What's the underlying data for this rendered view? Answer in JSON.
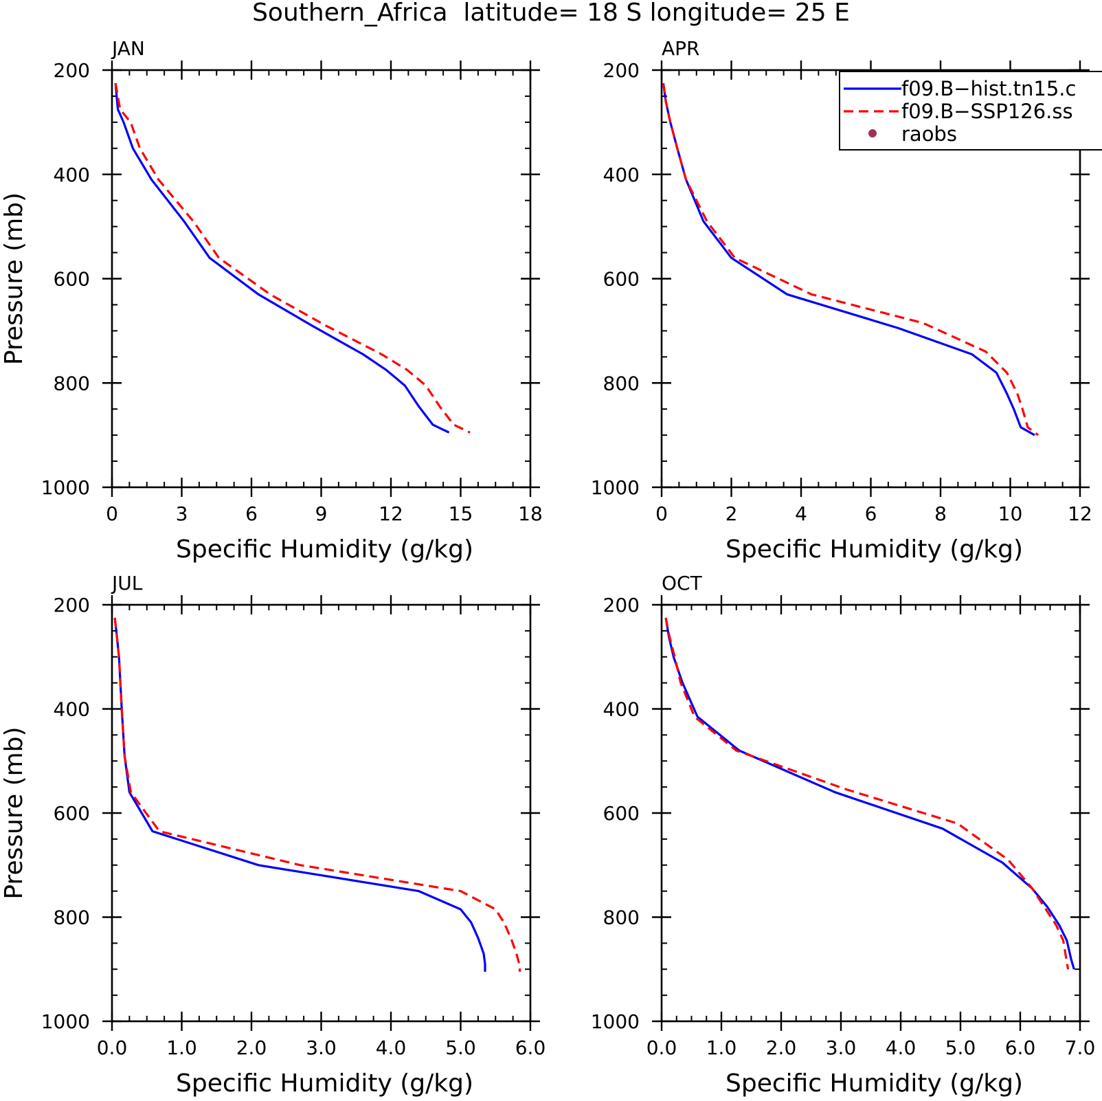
{
  "figure": {
    "title": "Southern_Africa  latitude= 18 S longitude= 25 E"
  },
  "legend": {
    "entries": [
      {
        "label": "f09.B−hist.tn15.c",
        "color": "#0000ff",
        "style": "solid"
      },
      {
        "label": "f09.B−SSP126.ss",
        "color": "#ff0000",
        "style": "dashed"
      },
      {
        "label": "raobs",
        "color": "#a0305a",
        "style": "marker"
      }
    ]
  },
  "chart_data": [
    {
      "type": "line",
      "panel_label": "JAN",
      "xlabel": "Specific Humidity (g/kg)",
      "ylabel": "Pressure (mb)",
      "xlim": [
        0,
        18
      ],
      "ylim": [
        200,
        1000
      ],
      "y_inverted": true,
      "xticks": [
        0,
        3,
        6,
        9,
        12,
        15,
        18
      ],
      "xtick_labels": [
        "0",
        "3",
        "6",
        "9",
        "12",
        "15",
        "18"
      ],
      "yticks": [
        200,
        400,
        600,
        800,
        1000
      ],
      "ytick_labels": [
        "200",
        "400",
        "600",
        "800",
        "1000"
      ],
      "series": [
        {
          "name": "f09.B−hist.tn15.c",
          "color": "#0000ff",
          "style": "solid",
          "x": [
            0.15,
            0.25,
            0.5,
            0.9,
            1.7,
            3.1,
            4.2,
            6.3,
            8.6,
            10.8,
            11.8,
            12.6,
            13.2,
            13.8,
            14.5
          ],
          "y": [
            225,
            275,
            300,
            350,
            410,
            490,
            560,
            630,
            690,
            745,
            775,
            805,
            845,
            880,
            895
          ]
        },
        {
          "name": "f09.B−SSP126.ss",
          "color": "#ff0000",
          "style": "dashed",
          "x": [
            0.15,
            0.35,
            0.8,
            1.2,
            2.0,
            3.5,
            4.6,
            6.8,
            9.2,
            11.6,
            12.7,
            13.5,
            14.1,
            14.7,
            15.4
          ],
          "y": [
            225,
            275,
            300,
            350,
            410,
            490,
            560,
            630,
            690,
            745,
            775,
            805,
            845,
            880,
            895
          ]
        }
      ]
    },
    {
      "type": "line",
      "panel_label": "APR",
      "xlabel": "Specific Humidity (g/kg)",
      "ylabel": "",
      "xlim": [
        0,
        12
      ],
      "ylim": [
        200,
        1000
      ],
      "y_inverted": true,
      "xticks": [
        0,
        2,
        4,
        6,
        8,
        10,
        12
      ],
      "xtick_labels": [
        "0",
        "2",
        "4",
        "6",
        "8",
        "10",
        "12"
      ],
      "yticks": [
        200,
        400,
        600,
        800,
        1000
      ],
      "ytick_labels": [
        "200",
        "400",
        "600",
        "800",
        "1000"
      ],
      "series": [
        {
          "name": "f09.B−hist.tn15.c",
          "color": "#0000ff",
          "style": "solid",
          "x": [
            0.05,
            0.12,
            0.25,
            0.45,
            0.7,
            1.2,
            2.0,
            3.6,
            6.8,
            8.9,
            9.6,
            9.9,
            10.1,
            10.3,
            10.7
          ],
          "y": [
            225,
            260,
            300,
            350,
            410,
            490,
            560,
            630,
            695,
            745,
            780,
            820,
            850,
            885,
            900
          ]
        },
        {
          "name": "f09.B−SSP126.ss",
          "color": "#ff0000",
          "style": "dashed",
          "x": [
            0.05,
            0.12,
            0.25,
            0.45,
            0.7,
            1.3,
            2.1,
            4.3,
            7.5,
            9.3,
            9.9,
            10.2,
            10.35,
            10.5,
            10.8
          ],
          "y": [
            225,
            260,
            300,
            350,
            410,
            490,
            560,
            630,
            685,
            740,
            780,
            820,
            850,
            885,
            900
          ]
        }
      ]
    },
    {
      "type": "line",
      "panel_label": "JUL",
      "xlabel": "Specific Humidity (g/kg)",
      "ylabel": "Pressure (mb)",
      "xlim": [
        0,
        6
      ],
      "ylim": [
        200,
        1000
      ],
      "y_inverted": true,
      "xticks": [
        0,
        1,
        2,
        3,
        4,
        5,
        6
      ],
      "xtick_labels": [
        "0.0",
        "1.0",
        "2.0",
        "3.0",
        "4.0",
        "5.0",
        "6.0"
      ],
      "yticks": [
        200,
        400,
        600,
        800,
        1000
      ],
      "ytick_labels": [
        "200",
        "400",
        "600",
        "800",
        "1000"
      ],
      "series": [
        {
          "name": "f09.B−hist.tn15.c",
          "color": "#0000ff",
          "style": "solid",
          "x": [
            0.04,
            0.07,
            0.1,
            0.14,
            0.18,
            0.25,
            0.58,
            2.1,
            4.4,
            5.0,
            5.15,
            5.25,
            5.33,
            5.35,
            5.35
          ],
          "y": [
            225,
            260,
            300,
            400,
            490,
            560,
            635,
            700,
            750,
            785,
            810,
            840,
            870,
            890,
            905
          ]
        },
        {
          "name": "f09.B−SSP126.ss",
          "color": "#ff0000",
          "style": "dashed",
          "x": [
            0.04,
            0.07,
            0.1,
            0.14,
            0.18,
            0.27,
            0.68,
            2.7,
            5.0,
            5.5,
            5.62,
            5.72,
            5.8,
            5.84,
            5.85
          ],
          "y": [
            225,
            260,
            300,
            400,
            490,
            560,
            635,
            700,
            750,
            785,
            810,
            840,
            870,
            890,
            905
          ]
        }
      ]
    },
    {
      "type": "line",
      "panel_label": "OCT",
      "xlabel": "Specific Humidity (g/kg)",
      "ylabel": "",
      "xlim": [
        0,
        7
      ],
      "ylim": [
        200,
        1000
      ],
      "y_inverted": true,
      "xticks": [
        0,
        1,
        2,
        3,
        4,
        5,
        6,
        7
      ],
      "xtick_labels": [
        "0.0",
        "1.0",
        "2.0",
        "3.0",
        "4.0",
        "5.0",
        "6.0",
        "7.0"
      ],
      "yticks": [
        200,
        400,
        600,
        800,
        1000
      ],
      "ytick_labels": [
        "200",
        "400",
        "600",
        "800",
        "1000"
      ],
      "series": [
        {
          "name": "f09.B−hist.tn15.c",
          "color": "#0000ff",
          "style": "solid",
          "x": [
            0.07,
            0.12,
            0.2,
            0.35,
            0.6,
            1.3,
            2.9,
            4.7,
            5.7,
            6.2,
            6.45,
            6.65,
            6.78,
            6.85,
            6.9
          ],
          "y": [
            225,
            260,
            300,
            350,
            415,
            480,
            560,
            630,
            695,
            745,
            780,
            815,
            845,
            880,
            900
          ]
        },
        {
          "name": "f09.B−SSP126.ss",
          "color": "#ff0000",
          "style": "dashed",
          "x": [
            0.07,
            0.13,
            0.22,
            0.32,
            0.55,
            1.25,
            3.1,
            4.95,
            5.8,
            6.2,
            6.4,
            6.6,
            6.72,
            6.77,
            6.8
          ],
          "y": [
            225,
            260,
            300,
            350,
            415,
            480,
            555,
            620,
            690,
            745,
            780,
            815,
            845,
            880,
            900
          ]
        }
      ]
    }
  ]
}
